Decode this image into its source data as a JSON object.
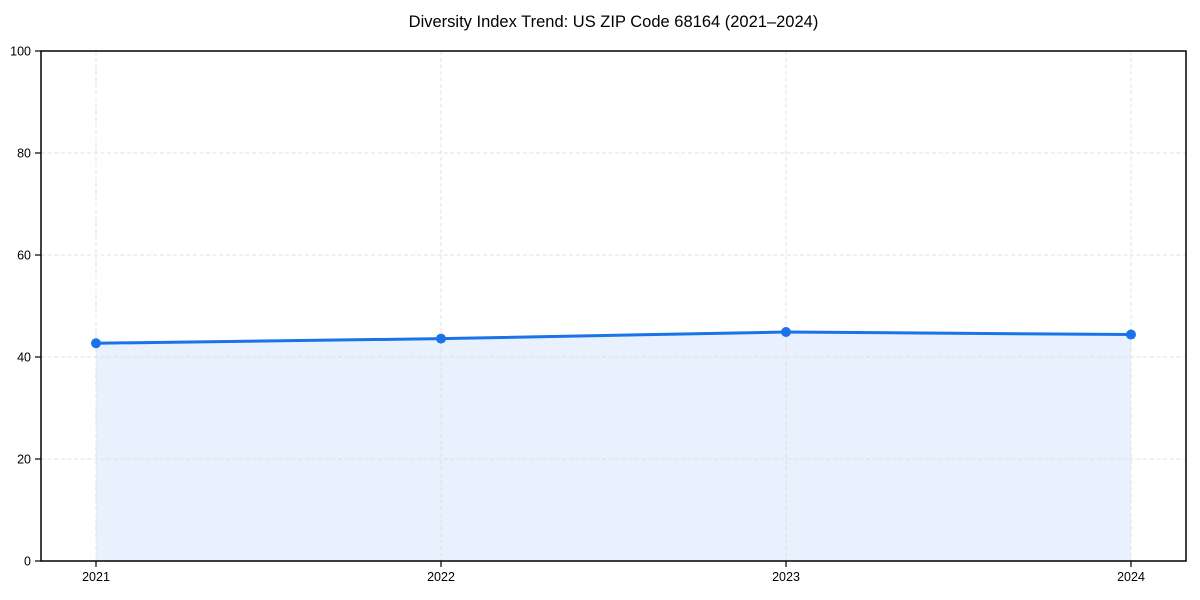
{
  "chart_data": {
    "type": "area",
    "title": "Diversity Index Trend: US ZIP Code 68164 (2021–2024)",
    "categories": [
      "2021",
      "2022",
      "2023",
      "2024"
    ],
    "values": [
      42.7,
      43.6,
      44.9,
      44.4
    ],
    "xlabel": "",
    "ylabel": "",
    "ylim": [
      0,
      100
    ],
    "yticks": [
      0,
      20,
      40,
      60,
      80,
      100
    ],
    "grid": true,
    "grid_style": "dashed",
    "legend_position": "none",
    "marker": "circle",
    "colors": {
      "line": "#1a73e8",
      "marker": "#1a73e8",
      "fill": "rgba(26,115,232,0.10)",
      "grid": "#e0e0e0",
      "spine": "#000000",
      "text": "#000000",
      "background": "#ffffff"
    }
  }
}
